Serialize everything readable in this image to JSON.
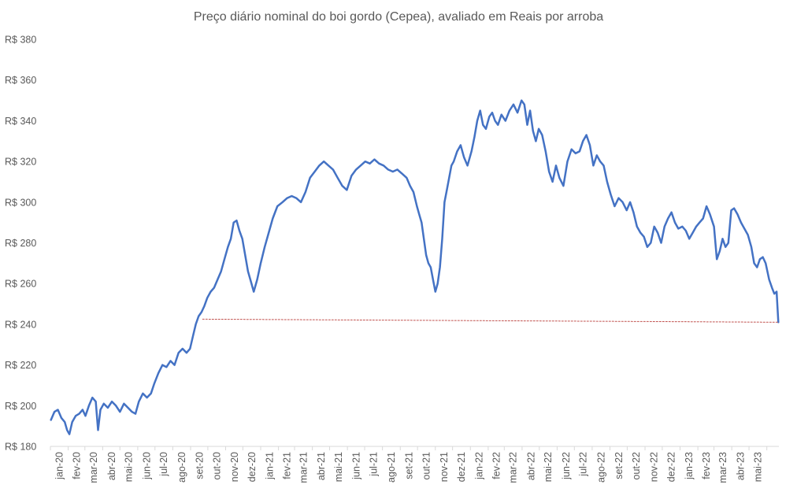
{
  "chart_data": {
    "type": "line",
    "title": "Preço diário nominal do boi gordo (Cepea), avaliado em Reais por arroba",
    "xlabel": "",
    "ylabel": "",
    "ylim": [
      180,
      380
    ],
    "yticks": [
      180,
      200,
      220,
      240,
      260,
      280,
      300,
      320,
      340,
      360,
      380
    ],
    "ytick_labels": [
      "R$ 180",
      "R$ 200",
      "R$ 220",
      "R$ 240",
      "R$ 260",
      "R$ 280",
      "R$ 300",
      "R$ 320",
      "R$ 340",
      "R$ 360",
      "R$ 380"
    ],
    "xtick_labels": [
      "jan-20",
      "fev-20",
      "mar-20",
      "abr-20",
      "mai-20",
      "jun-20",
      "jul-20",
      "ago-20",
      "set-20",
      "out-20",
      "nov-20",
      "dez-20",
      "jan-21",
      "fev-21",
      "mar-21",
      "abr-21",
      "mai-21",
      "jun-21",
      "jul-21",
      "ago-21",
      "set-21",
      "out-21",
      "nov-21",
      "dez-21",
      "jan-22",
      "fev-22",
      "mar-22",
      "abr-22",
      "mai-22",
      "jun-22",
      "jul-22",
      "ago-22",
      "set-22",
      "out-22",
      "nov-22",
      "dez-22",
      "jan-23",
      "fev-23",
      "mar-23",
      "abr-23",
      "mai-23"
    ],
    "xlim": [
      "2020-01-01",
      "2023-06-22"
    ],
    "grid": false,
    "legend": "none",
    "series": [
      {
        "color": "#4472C4",
        "points": [
          [
            "2020-01-02",
            193
          ],
          [
            "2020-01-08",
            197
          ],
          [
            "2020-01-14",
            198
          ],
          [
            "2020-01-20",
            194
          ],
          [
            "2020-01-26",
            192
          ],
          [
            "2020-01-30",
            188
          ],
          [
            "2020-02-03",
            186
          ],
          [
            "2020-02-08",
            192
          ],
          [
            "2020-02-14",
            195
          ],
          [
            "2020-02-20",
            196
          ],
          [
            "2020-02-26",
            198
          ],
          [
            "2020-03-02",
            195
          ],
          [
            "2020-03-08",
            200
          ],
          [
            "2020-03-14",
            204
          ],
          [
            "2020-03-20",
            202
          ],
          [
            "2020-03-24",
            188
          ],
          [
            "2020-03-28",
            198
          ],
          [
            "2020-04-03",
            201
          ],
          [
            "2020-04-10",
            199
          ],
          [
            "2020-04-17",
            202
          ],
          [
            "2020-04-24",
            200
          ],
          [
            "2020-05-01",
            197
          ],
          [
            "2020-05-08",
            201
          ],
          [
            "2020-05-15",
            199
          ],
          [
            "2020-05-22",
            197
          ],
          [
            "2020-05-28",
            196
          ],
          [
            "2020-06-03",
            202
          ],
          [
            "2020-06-10",
            206
          ],
          [
            "2020-06-17",
            204
          ],
          [
            "2020-06-24",
            206
          ],
          [
            "2020-06-30",
            211
          ],
          [
            "2020-07-07",
            216
          ],
          [
            "2020-07-14",
            220
          ],
          [
            "2020-07-21",
            219
          ],
          [
            "2020-07-28",
            222
          ],
          [
            "2020-08-04",
            220
          ],
          [
            "2020-08-11",
            226
          ],
          [
            "2020-08-18",
            228
          ],
          [
            "2020-08-25",
            226
          ],
          [
            "2020-08-31",
            228
          ],
          [
            "2020-09-05",
            234
          ],
          [
            "2020-09-10",
            240
          ],
          [
            "2020-09-15",
            244
          ],
          [
            "2020-09-20",
            246
          ],
          [
            "2020-09-25",
            249
          ],
          [
            "2020-09-30",
            253
          ],
          [
            "2020-10-06",
            256
          ],
          [
            "2020-10-12",
            258
          ],
          [
            "2020-10-18",
            262
          ],
          [
            "2020-10-24",
            266
          ],
          [
            "2020-10-30",
            272
          ],
          [
            "2020-11-05",
            278
          ],
          [
            "2020-11-10",
            282
          ],
          [
            "2020-11-15",
            290
          ],
          [
            "2020-11-20",
            291
          ],
          [
            "2020-11-25",
            286
          ],
          [
            "2020-11-30",
            282
          ],
          [
            "2020-12-05",
            274
          ],
          [
            "2020-12-10",
            266
          ],
          [
            "2020-12-15",
            261
          ],
          [
            "2020-12-20",
            256
          ],
          [
            "2020-12-26",
            262
          ],
          [
            "2021-01-01",
            270
          ],
          [
            "2021-01-08",
            278
          ],
          [
            "2021-01-15",
            285
          ],
          [
            "2021-01-22",
            292
          ],
          [
            "2021-01-30",
            298
          ],
          [
            "2021-02-08",
            300
          ],
          [
            "2021-02-16",
            302
          ],
          [
            "2021-02-24",
            303
          ],
          [
            "2021-03-04",
            302
          ],
          [
            "2021-03-12",
            300
          ],
          [
            "2021-03-20",
            305
          ],
          [
            "2021-03-28",
            312
          ],
          [
            "2021-04-05",
            315
          ],
          [
            "2021-04-13",
            318
          ],
          [
            "2021-04-21",
            320
          ],
          [
            "2021-04-29",
            318
          ],
          [
            "2021-05-07",
            316
          ],
          [
            "2021-05-15",
            312
          ],
          [
            "2021-05-23",
            308
          ],
          [
            "2021-05-31",
            306
          ],
          [
            "2021-06-08",
            313
          ],
          [
            "2021-06-16",
            316
          ],
          [
            "2021-06-24",
            318
          ],
          [
            "2021-07-02",
            320
          ],
          [
            "2021-07-10",
            319
          ],
          [
            "2021-07-18",
            321
          ],
          [
            "2021-07-26",
            319
          ],
          [
            "2021-08-03",
            318
          ],
          [
            "2021-08-11",
            316
          ],
          [
            "2021-08-19",
            315
          ],
          [
            "2021-08-27",
            316
          ],
          [
            "2021-09-04",
            314
          ],
          [
            "2021-09-12",
            312
          ],
          [
            "2021-09-18",
            308
          ],
          [
            "2021-09-24",
            305
          ],
          [
            "2021-09-30",
            298
          ],
          [
            "2021-10-04",
            294
          ],
          [
            "2021-10-08",
            290
          ],
          [
            "2021-10-12",
            282
          ],
          [
            "2021-10-16",
            274
          ],
          [
            "2021-10-20",
            270
          ],
          [
            "2021-10-24",
            268
          ],
          [
            "2021-10-28",
            262
          ],
          [
            "2021-11-01",
            256
          ],
          [
            "2021-11-05",
            260
          ],
          [
            "2021-11-09",
            268
          ],
          [
            "2021-11-13",
            282
          ],
          [
            "2021-11-17",
            300
          ],
          [
            "2021-11-21",
            306
          ],
          [
            "2021-11-25",
            312
          ],
          [
            "2021-11-29",
            318
          ],
          [
            "2021-12-03",
            320
          ],
          [
            "2021-12-09",
            325
          ],
          [
            "2021-12-15",
            328
          ],
          [
            "2021-12-21",
            322
          ],
          [
            "2021-12-27",
            318
          ],
          [
            "2022-01-03",
            325
          ],
          [
            "2022-01-08",
            332
          ],
          [
            "2022-01-13",
            340
          ],
          [
            "2022-01-18",
            345
          ],
          [
            "2022-01-23",
            338
          ],
          [
            "2022-01-28",
            336
          ],
          [
            "2022-02-03",
            342
          ],
          [
            "2022-02-08",
            344
          ],
          [
            "2022-02-13",
            340
          ],
          [
            "2022-02-18",
            338
          ],
          [
            "2022-02-24",
            343
          ],
          [
            "2022-03-03",
            340
          ],
          [
            "2022-03-10",
            345
          ],
          [
            "2022-03-17",
            348
          ],
          [
            "2022-03-24",
            344
          ],
          [
            "2022-03-31",
            350
          ],
          [
            "2022-04-05",
            348
          ],
          [
            "2022-04-10",
            338
          ],
          [
            "2022-04-15",
            345
          ],
          [
            "2022-04-20",
            335
          ],
          [
            "2022-04-25",
            330
          ],
          [
            "2022-04-30",
            336
          ],
          [
            "2022-05-06",
            333
          ],
          [
            "2022-05-12",
            325
          ],
          [
            "2022-05-18",
            315
          ],
          [
            "2022-05-24",
            310
          ],
          [
            "2022-05-30",
            318
          ],
          [
            "2022-06-05",
            312
          ],
          [
            "2022-06-12",
            308
          ],
          [
            "2022-06-19",
            320
          ],
          [
            "2022-06-26",
            326
          ],
          [
            "2022-07-03",
            324
          ],
          [
            "2022-07-10",
            325
          ],
          [
            "2022-07-16",
            330
          ],
          [
            "2022-07-22",
            333
          ],
          [
            "2022-07-28",
            328
          ],
          [
            "2022-08-03",
            318
          ],
          [
            "2022-08-09",
            323
          ],
          [
            "2022-08-15",
            320
          ],
          [
            "2022-08-21",
            318
          ],
          [
            "2022-08-27",
            310
          ],
          [
            "2022-09-02",
            304
          ],
          [
            "2022-09-09",
            298
          ],
          [
            "2022-09-16",
            302
          ],
          [
            "2022-09-23",
            300
          ],
          [
            "2022-09-30",
            296
          ],
          [
            "2022-10-06",
            300
          ],
          [
            "2022-10-12",
            295
          ],
          [
            "2022-10-18",
            288
          ],
          [
            "2022-10-24",
            285
          ],
          [
            "2022-10-30",
            283
          ],
          [
            "2022-11-05",
            278
          ],
          [
            "2022-11-11",
            280
          ],
          [
            "2022-11-17",
            288
          ],
          [
            "2022-11-23",
            285
          ],
          [
            "2022-11-29",
            280
          ],
          [
            "2022-12-05",
            288
          ],
          [
            "2022-12-11",
            292
          ],
          [
            "2022-12-17",
            295
          ],
          [
            "2022-12-23",
            290
          ],
          [
            "2022-12-29",
            287
          ],
          [
            "2023-01-05",
            288
          ],
          [
            "2023-01-11",
            286
          ],
          [
            "2023-01-17",
            282
          ],
          [
            "2023-01-23",
            285
          ],
          [
            "2023-01-29",
            288
          ],
          [
            "2023-02-04",
            290
          ],
          [
            "2023-02-10",
            292
          ],
          [
            "2023-02-16",
            298
          ],
          [
            "2023-02-22",
            294
          ],
          [
            "2023-03-01",
            288
          ],
          [
            "2023-03-06",
            272
          ],
          [
            "2023-03-11",
            276
          ],
          [
            "2023-03-16",
            282
          ],
          [
            "2023-03-21",
            278
          ],
          [
            "2023-03-26",
            280
          ],
          [
            "2023-03-31",
            296
          ],
          [
            "2023-04-05",
            297
          ],
          [
            "2023-04-11",
            294
          ],
          [
            "2023-04-17",
            290
          ],
          [
            "2023-04-23",
            287
          ],
          [
            "2023-04-29",
            284
          ],
          [
            "2023-05-05",
            278
          ],
          [
            "2023-05-10",
            270
          ],
          [
            "2023-05-15",
            268
          ],
          [
            "2023-05-20",
            272
          ],
          [
            "2023-05-25",
            273
          ],
          [
            "2023-05-30",
            270
          ],
          [
            "2023-06-05",
            262
          ],
          [
            "2023-06-10",
            258
          ],
          [
            "2023-06-14",
            255
          ],
          [
            "2023-06-18",
            256
          ],
          [
            "2023-06-21",
            241
          ]
        ]
      },
      {
        "color": "#C0504D",
        "style": "dotted",
        "points": [
          [
            "2020-09-22",
            242.5
          ],
          [
            "2023-06-21",
            241
          ]
        ]
      }
    ]
  }
}
